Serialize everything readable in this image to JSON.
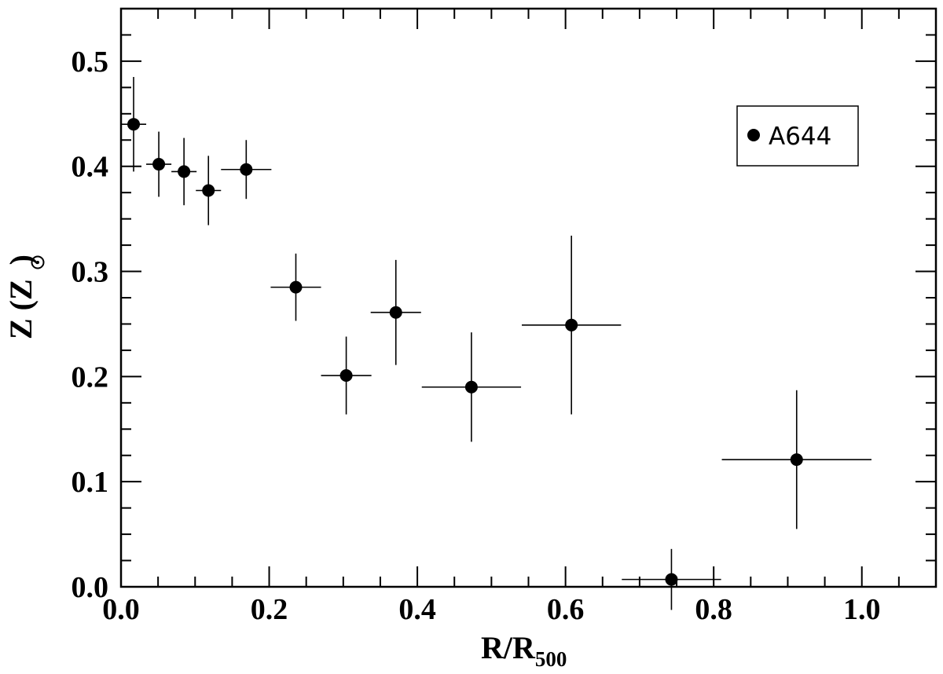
{
  "chart_data": {
    "type": "scatter",
    "xlabel_main": "R/R",
    "xlabel_sub": "500",
    "ylabel_main": "Z (Z",
    "ylabel_close": ")",
    "xlim": [
      0.0,
      1.1
    ],
    "ylim": [
      0.0,
      0.55
    ],
    "x_ticks": [
      "0.0",
      "0.2",
      "0.4",
      "0.6",
      "0.8",
      "1.0"
    ],
    "y_ticks": [
      "0.0",
      "0.1",
      "0.2",
      "0.3",
      "0.4",
      "0.5"
    ],
    "legend_position": "top-right",
    "grid": false,
    "series": [
      {
        "name": "A644",
        "color": "#000000",
        "marker": "filled-circle",
        "points": [
          {
            "x": 0.017,
            "xerr": 0.017,
            "y": 0.44,
            "yerr": 0.045
          },
          {
            "x": 0.051,
            "xerr": 0.017,
            "y": 0.402,
            "yerr": 0.031
          },
          {
            "x": 0.085,
            "xerr": 0.017,
            "y": 0.395,
            "yerr": 0.032
          },
          {
            "x": 0.118,
            "xerr": 0.017,
            "y": 0.377,
            "yerr": 0.033
          },
          {
            "x": 0.169,
            "xerr": 0.034,
            "y": 0.397,
            "yerr": 0.028
          },
          {
            "x": 0.236,
            "xerr": 0.034,
            "y": 0.285,
            "yerr": 0.032
          },
          {
            "x": 0.304,
            "xerr": 0.034,
            "y": 0.201,
            "yerr": 0.037
          },
          {
            "x": 0.371,
            "xerr": 0.034,
            "y": 0.261,
            "yerr": 0.05
          },
          {
            "x": 0.473,
            "xerr": 0.067,
            "y": 0.19,
            "yerr": 0.052
          },
          {
            "x": 0.608,
            "xerr": 0.067,
            "y": 0.249,
            "yerr": 0.085
          },
          {
            "x": 0.743,
            "xerr": 0.067,
            "y": 0.007,
            "yerr": 0.029
          },
          {
            "x": 0.912,
            "xerr": 0.101,
            "y": 0.121,
            "yerr": 0.066
          }
        ]
      }
    ]
  }
}
